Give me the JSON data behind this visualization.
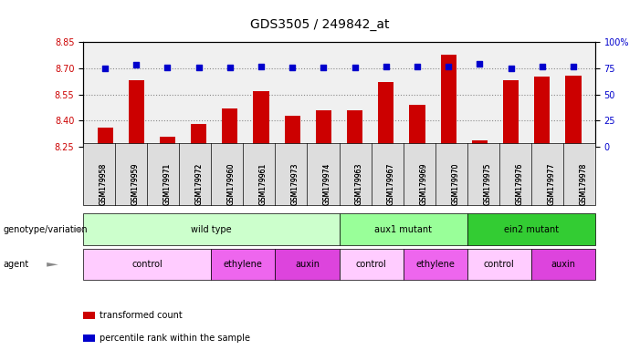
{
  "title": "GDS3505 / 249842_at",
  "samples": [
    "GSM179958",
    "GSM179959",
    "GSM179971",
    "GSM179972",
    "GSM179960",
    "GSM179961",
    "GSM179973",
    "GSM179974",
    "GSM179963",
    "GSM179967",
    "GSM179969",
    "GSM179970",
    "GSM179975",
    "GSM179976",
    "GSM179977",
    "GSM179978"
  ],
  "bar_values": [
    8.36,
    8.63,
    8.31,
    8.38,
    8.47,
    8.57,
    8.43,
    8.46,
    8.46,
    8.62,
    8.49,
    8.78,
    8.29,
    8.63,
    8.65,
    8.66
  ],
  "percentile_values": [
    75,
    78,
    76,
    76,
    76,
    77,
    76,
    76,
    76,
    77,
    77,
    77,
    79,
    75,
    77,
    77
  ],
  "ylim_left": [
    8.25,
    8.85
  ],
  "ylim_right": [
    0,
    100
  ],
  "yticks_left": [
    8.25,
    8.4,
    8.55,
    8.7,
    8.85
  ],
  "yticks_right": [
    0,
    25,
    50,
    75,
    100
  ],
  "bar_color": "#cc0000",
  "dot_color": "#0000cc",
  "hline_values": [
    8.4,
    8.55,
    8.7
  ],
  "genotype_groups": [
    {
      "label": "wild type",
      "start": 0,
      "end": 8,
      "color": "#ccffcc"
    },
    {
      "label": "aux1 mutant",
      "start": 8,
      "end": 12,
      "color": "#99ff99"
    },
    {
      "label": "ein2 mutant",
      "start": 12,
      "end": 16,
      "color": "#33cc33"
    }
  ],
  "agent_groups": [
    {
      "label": "control",
      "start": 0,
      "end": 4,
      "color": "#ffccff"
    },
    {
      "label": "ethylene",
      "start": 4,
      "end": 6,
      "color": "#ee66ee"
    },
    {
      "label": "auxin",
      "start": 6,
      "end": 8,
      "color": "#dd44dd"
    },
    {
      "label": "control",
      "start": 8,
      "end": 10,
      "color": "#ffccff"
    },
    {
      "label": "ethylene",
      "start": 10,
      "end": 12,
      "color": "#ee66ee"
    },
    {
      "label": "control",
      "start": 12,
      "end": 14,
      "color": "#ffccff"
    },
    {
      "label": "auxin",
      "start": 14,
      "end": 16,
      "color": "#dd44dd"
    }
  ],
  "legend_items": [
    {
      "label": "transformed count",
      "color": "#cc0000"
    },
    {
      "label": "percentile rank within the sample",
      "color": "#0000cc"
    }
  ],
  "bg_color": "#ffffff",
  "grid_color": "#888888",
  "tick_label_color_left": "#cc0000",
  "tick_label_color_right": "#0000cc",
  "xlabel_rotation": 90,
  "bar_width": 0.5
}
